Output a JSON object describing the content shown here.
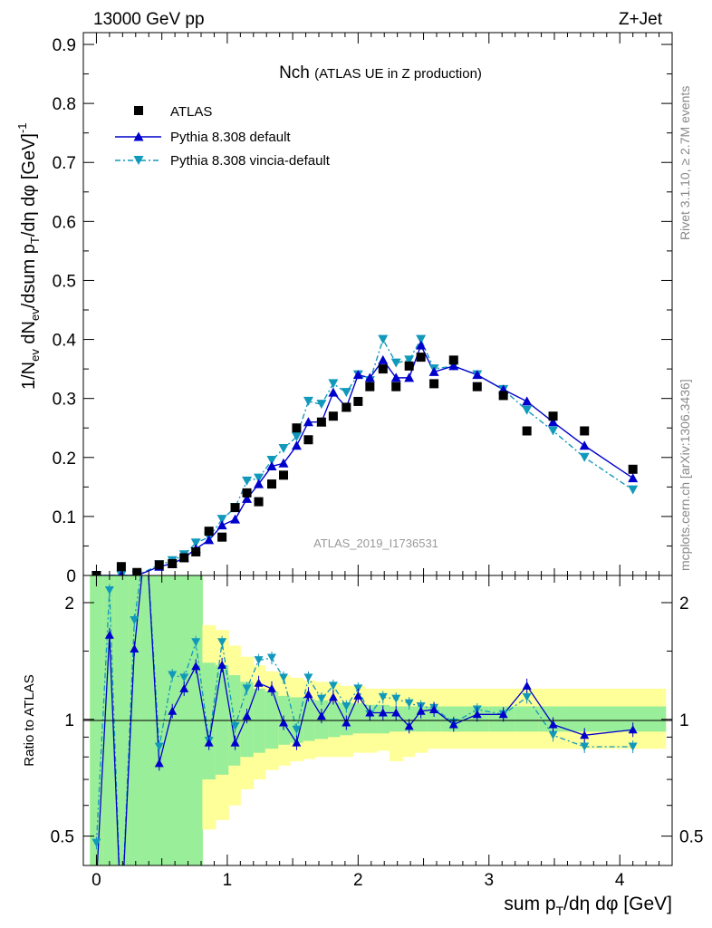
{
  "header": {
    "left": "13000 GeV pp",
    "right": "Z+Jet"
  },
  "side_labels": {
    "rivet": "Rivet 3.1.10, ≥ 2.7M events",
    "mcplots": "mcplots.cern.ch [arXiv:1306.3436]"
  },
  "colors": {
    "atlas": "#000000",
    "default": "#0000cc",
    "vincia": "#1199bb",
    "band_inner": "#99ee99",
    "band_outer": "#ffff99"
  },
  "chart_data": [
    {
      "type": "scatter",
      "title": "Nch",
      "subtitle": "(ATLAS UE in Z production)",
      "watermark": "ATLAS_2019_I1736531",
      "ylabel": "1/N_ev dN_ev/dsum p_T/dη dφ [GeV]^-1",
      "xlim": [
        -0.1,
        4.4
      ],
      "ylim": [
        0,
        0.92
      ],
      "yticks": [
        "0",
        "0.1",
        "0.2",
        "0.3",
        "0.4",
        "0.5",
        "0.6",
        "0.7",
        "0.8",
        "0.9"
      ],
      "legend": {
        "position": "top-left",
        "entries": [
          "ATLAS",
          "Pythia 8.308 default",
          "Pythia 8.308 vincia-default"
        ]
      },
      "x": [
        0.0,
        0.19,
        0.31,
        0.48,
        0.58,
        0.67,
        0.76,
        0.86,
        0.96,
        1.06,
        1.15,
        1.24,
        1.34,
        1.43,
        1.53,
        1.62,
        1.72,
        1.81,
        1.91,
        2.0,
        2.09,
        2.19,
        2.29,
        2.39,
        2.48,
        2.58,
        2.73,
        2.91,
        3.11,
        3.29,
        3.49,
        3.73,
        4.1
      ],
      "series": [
        {
          "name": "ATLAS",
          "values": [
            0.0,
            0.015,
            0.005,
            0.018,
            0.02,
            0.03,
            0.04,
            0.075,
            0.065,
            0.115,
            0.14,
            0.125,
            0.155,
            0.17,
            0.25,
            0.23,
            0.26,
            0.27,
            0.285,
            0.295,
            0.32,
            0.35,
            0.32,
            0.355,
            0.37,
            0.325,
            0.365,
            0.32,
            0.305,
            0.245,
            0.27,
            0.245,
            0.18
          ]
        },
        {
          "name": "Pythia 8.308 default",
          "values": [
            0.0,
            0.0,
            0.0,
            0.015,
            0.02,
            0.03,
            0.045,
            0.06,
            0.085,
            0.095,
            0.13,
            0.155,
            0.185,
            0.19,
            0.22,
            0.26,
            0.26,
            0.31,
            0.285,
            0.34,
            0.335,
            0.365,
            0.335,
            0.335,
            0.39,
            0.345,
            0.355,
            0.34,
            0.315,
            0.295,
            0.26,
            0.22,
            0.165
          ]
        },
        {
          "name": "Pythia 8.308 vincia-default",
          "values": [
            0.0,
            0.0,
            0.0,
            0.018,
            0.025,
            0.035,
            0.055,
            0.065,
            0.095,
            0.115,
            0.16,
            0.165,
            0.195,
            0.215,
            0.235,
            0.295,
            0.29,
            0.325,
            0.31,
            0.34,
            0.33,
            0.4,
            0.36,
            0.365,
            0.4,
            0.35,
            0.355,
            0.34,
            0.315,
            0.28,
            0.245,
            0.2,
            0.145
          ]
        }
      ]
    },
    {
      "type": "line",
      "ylabel": "Ratio to ATLAS",
      "xlabel": "sum p_T/dη dφ [GeV]",
      "xticks": [
        "0",
        "1",
        "2",
        "3",
        "4"
      ],
      "yticks": [
        "0.5",
        "1",
        "2"
      ],
      "log_y": true,
      "ylim": [
        0.42,
        2.35
      ],
      "x": [
        0.0,
        0.1,
        0.19,
        0.29,
        0.38,
        0.48,
        0.58,
        0.67,
        0.76,
        0.86,
        0.96,
        1.06,
        1.15,
        1.24,
        1.34,
        1.43,
        1.53,
        1.62,
        1.72,
        1.81,
        1.91,
        2.0,
        2.09,
        2.19,
        2.29,
        2.39,
        2.48,
        2.58,
        2.73,
        2.91,
        3.11,
        3.29,
        3.49,
        3.73,
        4.1
      ],
      "series": [
        {
          "name": "Pythia 8.308 default",
          "values": [
            0.38,
            1.65,
            0.3,
            1.52,
            3.0,
            0.77,
            1.05,
            1.2,
            1.37,
            0.87,
            1.38,
            0.87,
            1.02,
            1.24,
            1.2,
            0.98,
            0.87,
            1.16,
            1.02,
            1.14,
            0.98,
            1.15,
            1.04,
            1.04,
            1.04,
            0.96,
            1.05,
            1.06,
            0.97,
            1.03,
            1.03,
            1.22,
            0.97,
            0.91,
            0.94
          ]
        },
        {
          "name": "Pythia 8.308 vincia-default",
          "values": [
            0.48,
            2.15,
            0.3,
            1.8,
            3.0,
            0.85,
            1.3,
            1.28,
            1.58,
            0.88,
            1.58,
            0.96,
            1.2,
            1.42,
            1.44,
            1.28,
            0.94,
            1.28,
            1.13,
            1.22,
            1.08,
            1.2,
            1.03,
            1.14,
            1.13,
            1.1,
            1.08,
            1.07,
            0.98,
            1.06,
            1.03,
            1.14,
            0.91,
            0.85,
            0.85
          ]
        }
      ],
      "bands": {
        "edges": [
          -0.05,
          0.05,
          0.14,
          0.24,
          0.33,
          0.43,
          0.53,
          0.62,
          0.72,
          0.81,
          0.91,
          1.01,
          1.1,
          1.2,
          1.29,
          1.39,
          1.48,
          1.58,
          1.67,
          1.77,
          1.86,
          1.96,
          2.05,
          2.14,
          2.24,
          2.34,
          2.43,
          2.53,
          2.63,
          2.82,
          3.0,
          3.2,
          3.38,
          3.6,
          3.86,
          4.35
        ],
        "inner_lo": [
          0.3,
          0.3,
          0.3,
          0.3,
          0.3,
          0.3,
          0.3,
          0.3,
          0.3,
          0.7,
          0.72,
          0.76,
          0.8,
          0.82,
          0.84,
          0.86,
          0.87,
          0.88,
          0.89,
          0.9,
          0.91,
          0.92,
          0.92,
          0.92,
          0.93,
          0.93,
          0.93,
          0.93,
          0.93,
          0.93,
          0.93,
          0.93,
          0.93,
          0.93,
          0.93
        ],
        "inner_hi": [
          3.0,
          3.0,
          3.0,
          3.0,
          3.0,
          3.0,
          3.0,
          3.0,
          3.0,
          1.4,
          1.38,
          1.3,
          1.25,
          1.2,
          1.18,
          1.15,
          1.14,
          1.13,
          1.12,
          1.11,
          1.1,
          1.1,
          1.09,
          1.09,
          1.08,
          1.08,
          1.08,
          1.08,
          1.08,
          1.08,
          1.08,
          1.08,
          1.08,
          1.08,
          1.08
        ],
        "outer_lo": [
          0.3,
          0.3,
          0.3,
          0.3,
          0.3,
          0.3,
          0.3,
          0.3,
          0.3,
          0.52,
          0.55,
          0.6,
          0.66,
          0.7,
          0.74,
          0.76,
          0.78,
          0.79,
          0.8,
          0.8,
          0.8,
          0.82,
          0.82,
          0.83,
          0.78,
          0.8,
          0.82,
          0.84,
          0.84,
          0.84,
          0.84,
          0.84,
          0.84,
          0.84,
          0.84
        ],
        "outer_hi": [
          3.0,
          3.0,
          3.0,
          3.0,
          3.0,
          3.0,
          3.0,
          3.0,
          3.0,
          1.75,
          1.7,
          1.55,
          1.45,
          1.38,
          1.33,
          1.3,
          1.28,
          1.26,
          1.25,
          1.24,
          1.22,
          1.22,
          1.2,
          1.2,
          1.2,
          1.2,
          1.2,
          1.2,
          1.2,
          1.2,
          1.2,
          1.2,
          1.2,
          1.2,
          1.2
        ]
      }
    }
  ]
}
